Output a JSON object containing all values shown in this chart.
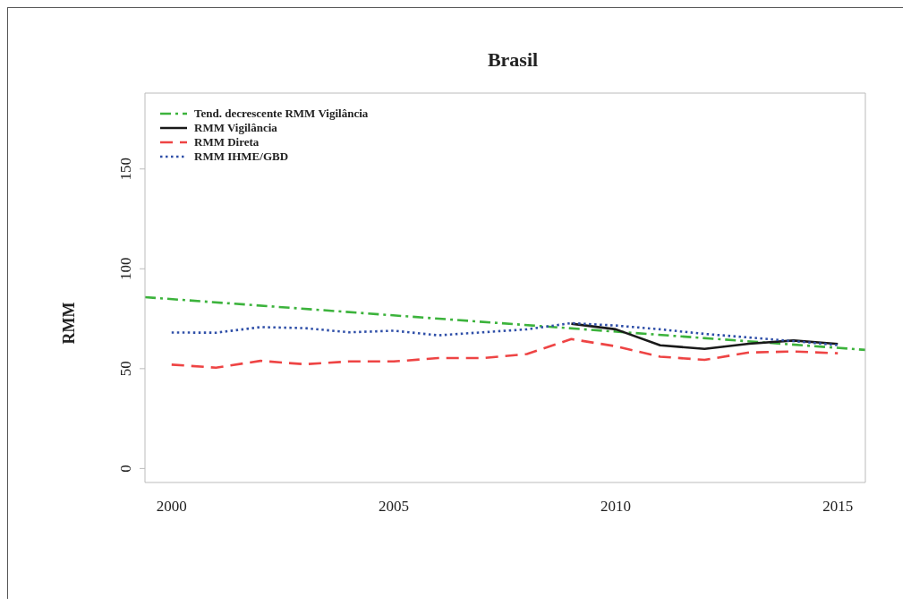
{
  "chart_data": {
    "type": "line",
    "title": "Brasil",
    "ylabel": "RMM",
    "xlim": [
      1999.4,
      2015.62
    ],
    "ylim": [
      -7,
      188
    ],
    "xticks": [
      2000,
      2005,
      2010,
      2015
    ],
    "yticks": [
      0,
      50,
      100,
      150
    ],
    "legend": "top left",
    "series": [
      {
        "name": "Tend. decrescente RMM Vigilância",
        "color": "#3cb33c",
        "line_style": "dashdot",
        "x": [
          1999.4,
          2015.62
        ],
        "values": [
          85.8,
          59.4
        ]
      },
      {
        "name": "RMM Vigilância",
        "color": "#1a1a1a",
        "line_style": "solid",
        "x": [
          2009,
          2010,
          2011,
          2012,
          2013,
          2014,
          2015
        ],
        "values": [
          72.5,
          69.7,
          61.7,
          59.9,
          62.5,
          64.1,
          62.4
        ]
      },
      {
        "name": "RMM Direta",
        "color": "#ee4444",
        "line_style": "dashed",
        "x": [
          2000,
          2001,
          2002,
          2003,
          2004,
          2005,
          2006,
          2007,
          2008,
          2009,
          2010,
          2011,
          2012,
          2013,
          2014,
          2015
        ],
        "values": [
          52,
          50.5,
          53.9,
          52.2,
          53.6,
          53.6,
          55.3,
          55.3,
          57.3,
          64.8,
          61.2,
          56,
          54.4,
          58.1,
          58.6,
          57.7
        ]
      },
      {
        "name": "RMM IHME/GBD",
        "color": "#2f4fa8",
        "line_style": "dotted",
        "x": [
          2000,
          2001,
          2002,
          2003,
          2004,
          2005,
          2006,
          2007,
          2008,
          2009,
          2010,
          2011,
          2012,
          2013,
          2014,
          2015
        ],
        "values": [
          68.1,
          68,
          70.8,
          70.3,
          68.2,
          69,
          66.7,
          68.2,
          69.7,
          72.8,
          71.6,
          69.7,
          67.4,
          65.6,
          63.8,
          61.8
        ]
      }
    ]
  }
}
